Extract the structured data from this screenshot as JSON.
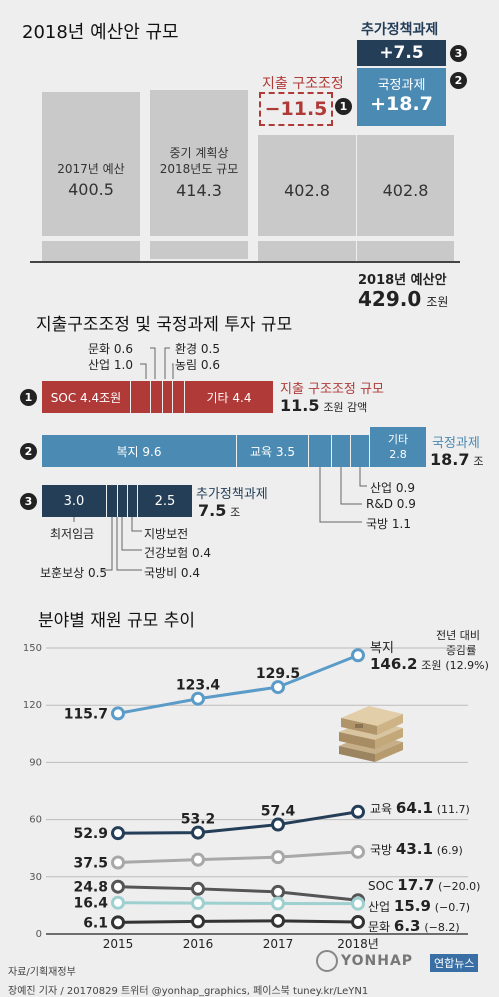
{
  "budget": {
    "title": "2018년 예산안 규모",
    "bars": [
      {
        "label": "2017년 예산",
        "value": "400.5"
      },
      {
        "label": "중기 계획상 2018년도 규모",
        "label_line1": "중기 계획상",
        "label_line2": "2018년도 규모",
        "value": "414.3"
      },
      {
        "value": "402.8"
      },
      {
        "value": "402.8"
      }
    ],
    "cut": {
      "label": "지출 구조조정",
      "value": "−11.5",
      "num": "1"
    },
    "gov": {
      "label": "국정과제",
      "value": "+18.7",
      "num": "2"
    },
    "extra": {
      "label": "추가정책과제",
      "value": "+7.5",
      "num": "3"
    },
    "total": {
      "label": "2018년 예산안",
      "value": "429.0",
      "unit": "조원"
    },
    "colors": {
      "cut": "#b03a38",
      "gov": "#4a8ab3",
      "extra": "#243e58",
      "bar": "#c9c9c9"
    }
  },
  "invest": {
    "title": "지출구조조정 및 국정과제 투자 규모",
    "row1": {
      "num": "1",
      "segments": [
        "SOC 4.4조원",
        "기타 4.4"
      ],
      "top_labels": [
        "문화 0.6",
        "산업 1.0",
        "환경 0.5",
        "농림 0.6"
      ],
      "name": "지출 구조조정 규모",
      "total": "11.5",
      "unit": "조원 감액"
    },
    "row2": {
      "num": "2",
      "segments": [
        "복지 9.6",
        "교육 3.5"
      ],
      "other_l1": "기타",
      "other_l2": "2.8",
      "bottom_labels": [
        "산업 0.9",
        "R&D 0.9",
        "국방 1.1"
      ],
      "name": "국정과제",
      "total": "18.7",
      "unit": "조"
    },
    "row3": {
      "num": "3",
      "segments": [
        "3.0",
        "2.5"
      ],
      "bottom_labels": [
        "최저임금",
        "지방보전",
        "건강보험 0.4",
        "보훈보상 0.5",
        "국방비 0.4"
      ],
      "name": "추가정책과제",
      "total": "7.5",
      "unit": "조"
    }
  },
  "trend": {
    "title": "분야별 재원 규모 추이",
    "header_line1": "전년 대비",
    "header_line2": "증감률",
    "labels": [
      {
        "name": "복지",
        "value": "146.2",
        "unit": "조원",
        "change": "(12.9%)"
      },
      {
        "name": "교육",
        "value": "64.1",
        "change": "(11.7)"
      },
      {
        "name": "국방",
        "value": "43.1",
        "change": "(6.9)"
      },
      {
        "name": "SOC",
        "value": "17.7",
        "change": "(−20.0)"
      },
      {
        "name": "산업",
        "value": "15.9",
        "change": "(−0.7)"
      },
      {
        "name": "문화",
        "value": "6.3",
        "change": "(−8.2)"
      }
    ],
    "source": "자료/기획재정부",
    "credit": "장예진 기자 / 20170829 트위터 @yonhap_graphics, 페이스북 tuney.kr/LeYN1",
    "logo": "YONHAP",
    "logo2": "연합뉴스"
  },
  "chart_data": {
    "type": "line",
    "title": "분야별 재원 규모 추이",
    "x": [
      "2015",
      "2016",
      "2017",
      "2018년"
    ],
    "y_ticks": [
      0,
      30,
      60,
      90,
      120,
      150
    ],
    "ylim": [
      0,
      150
    ],
    "series": [
      {
        "name": "복지",
        "values": [
          115.7,
          123.4,
          129.5,
          146.2
        ],
        "color": "#5b9bc8",
        "labels": [
          "115.7",
          "123.4",
          "129.5",
          ""
        ]
      },
      {
        "name": "교육",
        "values": [
          52.9,
          53.2,
          57.4,
          64.1
        ],
        "color": "#243e58",
        "labels": [
          "52.9",
          "53.2",
          "57.4",
          ""
        ]
      },
      {
        "name": "국방",
        "values": [
          37.5,
          39.0,
          40.3,
          43.1
        ],
        "color": "#a8a8a8",
        "labels": [
          "37.5",
          "",
          "",
          ""
        ]
      },
      {
        "name": "SOC",
        "values": [
          24.8,
          23.7,
          22.1,
          17.7
        ],
        "color": "#555555",
        "labels": [
          "24.8",
          "",
          "",
          ""
        ]
      },
      {
        "name": "산업",
        "values": [
          16.4,
          16.2,
          16.0,
          15.9
        ],
        "color": "#9fd0d0",
        "labels": [
          "16.4",
          "",
          "",
          ""
        ]
      },
      {
        "name": "문화",
        "values": [
          6.1,
          6.6,
          6.9,
          6.3
        ],
        "color": "#333333",
        "labels": [
          "6.1",
          "",
          "",
          ""
        ]
      }
    ]
  }
}
